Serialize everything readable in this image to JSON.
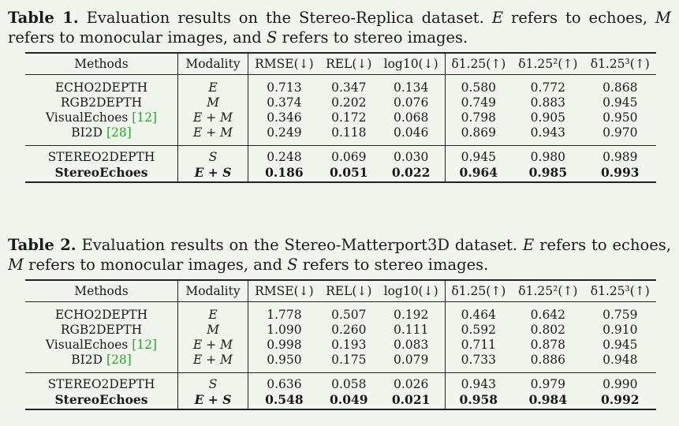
{
  "tables": [
    {
      "caption_label": "Table 1.",
      "caption_text": " Evaluation results on the Stereo-Replica dataset. ",
      "caption_notes": [
        {
          "sym": "E",
          "text": " refers to echoes, "
        },
        {
          "sym": "M",
          "text": " refers to monocular images, and "
        },
        {
          "sym": "S",
          "text": " refers to stereo images."
        }
      ],
      "headers": {
        "methods": "Methods",
        "modality": "Modality",
        "rmse": "RMSE(↓)",
        "rel": "REL(↓)",
        "log10": "log10(↓)",
        "d1": "δ1.25(↑)",
        "d2": "δ1.25²(↑)",
        "d3": "δ1.25³(↑)"
      },
      "group1": [
        {
          "method": "ECHO2DEPTH",
          "ref": "",
          "modality": "E",
          "rmse": "0.713",
          "rel": "0.347",
          "log10": "0.134",
          "d1": "0.580",
          "d2": "0.772",
          "d3": "0.868"
        },
        {
          "method": "RGB2DEPTH",
          "ref": "",
          "modality": "M",
          "rmse": "0.374",
          "rel": "0.202",
          "log10": "0.076",
          "d1": "0.749",
          "d2": "0.883",
          "d3": "0.945"
        },
        {
          "method": "VisualEchoes ",
          "ref": "[12]",
          "modality": "E + M",
          "rmse": "0.346",
          "rel": "0.172",
          "log10": "0.068",
          "d1": "0.798",
          "d2": "0.905",
          "d3": "0.950"
        },
        {
          "method": "BI2D ",
          "ref": "[28]",
          "modality": "E + M",
          "rmse": "0.249",
          "rel": "0.118",
          "log10": "0.046",
          "d1": "0.869",
          "d2": "0.943",
          "d3": "0.970"
        }
      ],
      "group2": [
        {
          "method": "STEREO2DEPTH",
          "ref": "",
          "modality": "S",
          "rmse": "0.248",
          "rel": "0.069",
          "log10": "0.030",
          "d1": "0.945",
          "d2": "0.980",
          "d3": "0.989",
          "bold": false
        },
        {
          "method": "StereoEchoes",
          "ref": "",
          "modality": "E + S",
          "rmse": "0.186",
          "rel": "0.051",
          "log10": "0.022",
          "d1": "0.964",
          "d2": "0.985",
          "d3": "0.993",
          "bold": true
        }
      ]
    },
    {
      "caption_label": "Table 2.",
      "caption_text": " Evaluation results on the Stereo-Matterport3D dataset. ",
      "caption_notes": [
        {
          "sym": "E",
          "text": " refers to echoes, "
        },
        {
          "sym": "M",
          "text": " refers to monocular images, and "
        },
        {
          "sym": "S",
          "text": " refers to stereo images."
        }
      ],
      "headers": {
        "methods": "Methods",
        "modality": "Modality",
        "rmse": "RMSE(↓)",
        "rel": "REL(↓)",
        "log10": "log10(↓)",
        "d1": "δ1.25(↑)",
        "d2": "δ1.25²(↑)",
        "d3": "δ1.25³(↑)"
      },
      "group1": [
        {
          "method": "ECHO2DEPTH",
          "ref": "",
          "modality": "E",
          "rmse": "1.778",
          "rel": "0.507",
          "log10": "0.192",
          "d1": "0.464",
          "d2": "0.642",
          "d3": "0.759"
        },
        {
          "method": "RGB2DEPTH",
          "ref": "",
          "modality": "M",
          "rmse": "1.090",
          "rel": "0.260",
          "log10": "0.111",
          "d1": "0.592",
          "d2": "0.802",
          "d3": "0.910"
        },
        {
          "method": "VisualEchoes ",
          "ref": "[12]",
          "modality": "E + M",
          "rmse": "0.998",
          "rel": "0.193",
          "log10": "0.083",
          "d1": "0.711",
          "d2": "0.878",
          "d3": "0.945"
        },
        {
          "method": "BI2D ",
          "ref": "[28]",
          "modality": "E + M",
          "rmse": "0.950",
          "rel": "0.175",
          "log10": "0.079",
          "d1": "0.733",
          "d2": "0.886",
          "d3": "0.948"
        }
      ],
      "group2": [
        {
          "method": "STEREO2DEPTH",
          "ref": "",
          "modality": "S",
          "rmse": "0.636",
          "rel": "0.058",
          "log10": "0.026",
          "d1": "0.943",
          "d2": "0.979",
          "d3": "0.990",
          "bold": false
        },
        {
          "method": "StereoEchoes",
          "ref": "",
          "modality": "E + S",
          "rmse": "0.548",
          "rel": "0.049",
          "log10": "0.021",
          "d1": "0.958",
          "d2": "0.984",
          "d3": "0.992",
          "bold": true
        }
      ]
    }
  ]
}
